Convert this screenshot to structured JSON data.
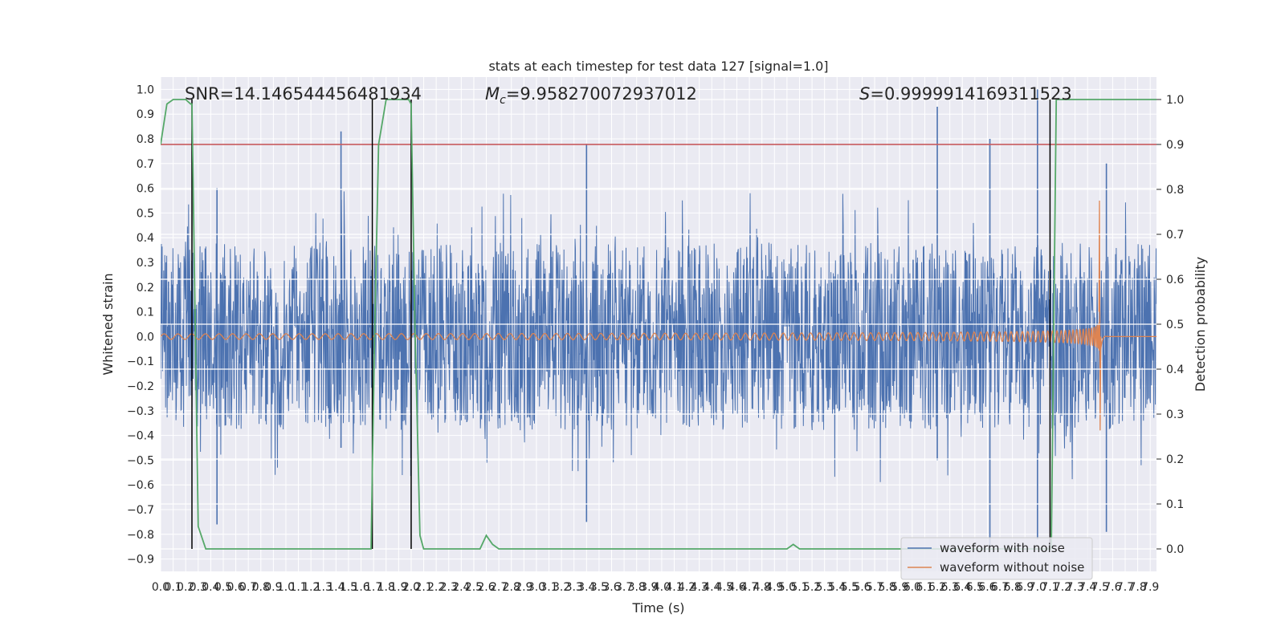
{
  "chart_data": {
    "type": "line",
    "title": "stats at each timestep for test data 127 [signal=1.0]",
    "xlabel": "Time (s)",
    "ylabel": "Whitened strain",
    "y2label": "Detection probability",
    "xlim": [
      0.0,
      7.95
    ],
    "ylim": [
      -0.95,
      1.05
    ],
    "y2lim": [
      -0.05,
      1.05
    ],
    "x_ticks": [
      0.0,
      0.1,
      0.2,
      0.3,
      0.4,
      0.5,
      0.6,
      0.7,
      0.8,
      0.9,
      1.0,
      1.1,
      1.2,
      1.3,
      1.4,
      1.5,
      1.6,
      1.7,
      1.8,
      1.9,
      2.0,
      2.1,
      2.2,
      2.3,
      2.4,
      2.5,
      2.6,
      2.7,
      2.8,
      2.9,
      3.0,
      3.1,
      3.2,
      3.3,
      3.4,
      3.5,
      3.6,
      3.7,
      3.8,
      3.9,
      4.0,
      4.1,
      4.2,
      4.3,
      4.4,
      4.5,
      4.6,
      4.7,
      4.8,
      4.9,
      5.0,
      5.1,
      5.2,
      5.3,
      5.4,
      5.5,
      5.6,
      5.7,
      5.8,
      5.9,
      6.0,
      6.1,
      6.2,
      6.3,
      6.4,
      6.5,
      6.6,
      6.7,
      6.8,
      6.9,
      7.0,
      7.1,
      7.2,
      7.3,
      7.4,
      7.5,
      7.6,
      7.7,
      7.8,
      7.9
    ],
    "x_tick_labels": [
      "0.0",
      "0.1",
      "0.2",
      "0.3",
      "0.4",
      "0.5",
      "0.6",
      "0.7",
      "0.8",
      "0.9",
      "1.0",
      "1.1",
      "1.2",
      "1.3",
      "1.4",
      "1.5",
      "1.6",
      "1.7",
      "1.8",
      "1.9",
      "2.0",
      "2.1",
      "2.2",
      "2.3",
      "2.4",
      "2.5",
      "2.6",
      "2.7",
      "2.8",
      "2.9",
      "3.0",
      "3.1",
      "3.2",
      "3.3",
      "3.4",
      "3.5",
      "3.6",
      "3.7",
      "3.8",
      "3.9",
      "4.0",
      "4.1",
      "4.2",
      "4.3",
      "4.4",
      "4.5",
      "4.6",
      "4.7",
      "4.8",
      "4.9",
      "5.0",
      "5.1",
      "5.2",
      "5.3",
      "5.4",
      "5.5",
      "5.6",
      "5.7",
      "5.8",
      "5.9",
      "6.0",
      "6.1",
      "6.2",
      "6.3",
      "6.4",
      "6.5",
      "6.6",
      "6.7",
      "6.8",
      "6.9",
      "7.0",
      "7.1",
      "7.2",
      "7.3",
      "7.4",
      "7.5",
      "7.6",
      "7.7",
      "7.8",
      "7.9"
    ],
    "y_ticks": [
      -0.9,
      -0.8,
      -0.7,
      -0.6,
      -0.5,
      -0.4,
      -0.3,
      -0.2,
      -0.1,
      0.0,
      0.1,
      0.2,
      0.3,
      0.4,
      0.5,
      0.6,
      0.7,
      0.8,
      0.9,
      1.0
    ],
    "y_tick_labels": [
      "−0.9",
      "−0.8",
      "−0.7",
      "−0.6",
      "−0.5",
      "−0.4",
      "−0.3",
      "−0.2",
      "−0.1",
      "0.0",
      "0.1",
      "0.2",
      "0.3",
      "0.4",
      "0.5",
      "0.6",
      "0.7",
      "0.8",
      "0.9",
      "1.0"
    ],
    "y2_ticks": [
      0.0,
      0.1,
      0.2,
      0.3,
      0.4,
      0.5,
      0.6,
      0.7,
      0.8,
      0.9,
      1.0
    ],
    "y2_tick_labels": [
      "0.0",
      "0.1",
      "0.2",
      "0.3",
      "0.4",
      "0.5",
      "0.6",
      "0.7",
      "0.8",
      "0.9",
      "1.0"
    ],
    "annotations": {
      "snr": "SNR=14.146544456481934",
      "mc_symbol": "M",
      "mc_sub": "c",
      "mc_value": "=9.958270072937012",
      "s_symbol": "S",
      "s_value": "=0.9999914169311523"
    },
    "threshold": 0.9,
    "vertical_lines": [
      0.25,
      1.69,
      2.0,
      7.1
    ],
    "noisy_waveform": {
      "baseline_amplitude": 0.38,
      "spikes": [
        [
          1.44,
          0.83,
          -0.45
        ],
        [
          6.2,
          0.93,
          -0.5
        ],
        [
          6.62,
          0.8,
          -0.85
        ],
        [
          7.0,
          1.0,
          -0.82
        ],
        [
          0.45,
          0.6,
          -0.76
        ],
        [
          3.4,
          0.78,
          -0.75
        ],
        [
          7.55,
          0.7,
          -0.79
        ]
      ]
    },
    "clean_waveform": {
      "merger_time": 7.5,
      "peak_amplitude": 0.55,
      "min_amplitude": -0.38
    },
    "detection_probability": {
      "x": [
        0.0,
        0.05,
        0.1,
        0.15,
        0.2,
        0.24,
        0.25,
        0.3,
        0.36,
        0.5,
        1.0,
        1.5,
        1.68,
        1.71,
        1.74,
        1.8,
        1.9,
        1.98,
        2.0,
        2.03,
        2.07,
        2.1,
        2.3,
        2.45,
        2.55,
        2.6,
        2.65,
        2.7,
        3.0,
        4.0,
        4.9,
        5.0,
        5.05,
        5.1,
        5.5,
        6.0,
        6.5,
        7.0,
        7.1,
        7.11,
        7.13,
        7.15,
        7.5,
        7.95
      ],
      "y": [
        0.9,
        0.99,
        1.0,
        1.0,
        1.0,
        0.99,
        0.99,
        0.05,
        0.0,
        0.0,
        0.0,
        0.0,
        0.0,
        0.5,
        0.9,
        1.0,
        1.0,
        1.0,
        0.99,
        0.5,
        0.03,
        0.0,
        0.0,
        0.0,
        0.0,
        0.03,
        0.01,
        0.0,
        0.0,
        0.0,
        0.0,
        0.0,
        0.01,
        0.0,
        0.0,
        0.0,
        0.0,
        0.0,
        0.0,
        0.0,
        0.5,
        1.0,
        1.0,
        1.0
      ]
    },
    "legend_position": "lower-right",
    "series": [
      {
        "name": "waveform with noise",
        "color": "#4c72b0"
      },
      {
        "name": "waveform without noise",
        "color": "#dd8452"
      },
      {
        "name": "detection probability",
        "color": "#55a868"
      },
      {
        "name": "threshold",
        "color": "#c44e52"
      }
    ],
    "legend": [
      "waveform with noise",
      "waveform without noise"
    ]
  }
}
